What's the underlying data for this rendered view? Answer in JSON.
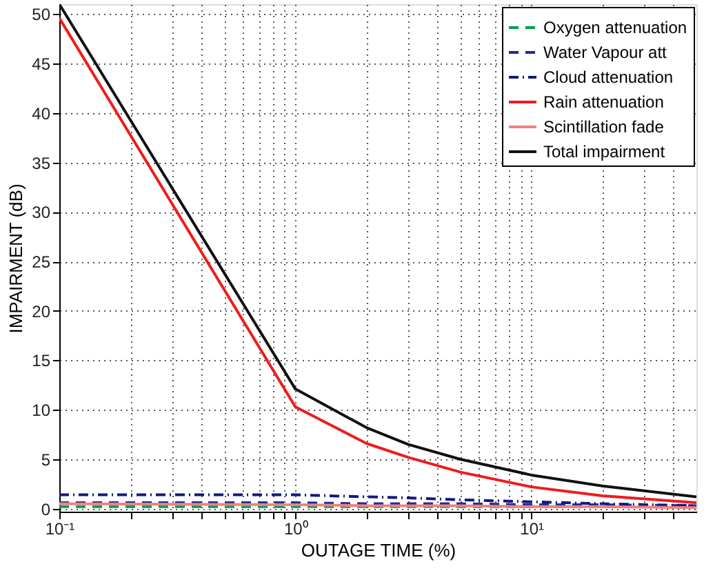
{
  "chart_data": {
    "type": "line",
    "xlabel": "OUTAGE TIME (%)",
    "ylabel": "IMPAIRMENT (dB)",
    "log": "x",
    "grid": true,
    "legend": "top right",
    "marker": "none",
    "xlim": [
      0.1,
      50
    ],
    "ylim": [
      -0.3,
      51
    ],
    "xticks": [
      {
        "value": 0.1,
        "label": "10⁻¹"
      },
      {
        "value": 0.2,
        "label": null
      },
      {
        "value": 0.3,
        "label": null
      },
      {
        "value": 0.4,
        "label": null
      },
      {
        "value": 0.5,
        "label": null
      },
      {
        "value": 0.6,
        "label": null
      },
      {
        "value": 0.7,
        "label": null
      },
      {
        "value": 0.8,
        "label": null
      },
      {
        "value": 0.9,
        "label": null
      },
      {
        "value": 1,
        "label": "10⁰"
      },
      {
        "value": 2,
        "label": null
      },
      {
        "value": 3,
        "label": null
      },
      {
        "value": 4,
        "label": null
      },
      {
        "value": 5,
        "label": null
      },
      {
        "value": 6,
        "label": null
      },
      {
        "value": 7,
        "label": null
      },
      {
        "value": 8,
        "label": null
      },
      {
        "value": 9,
        "label": null
      },
      {
        "value": 10,
        "label": "10¹"
      },
      {
        "value": 20,
        "label": null
      },
      {
        "value": 30,
        "label": null
      },
      {
        "value": 40,
        "label": null
      }
    ],
    "yticks": [
      0,
      5,
      10,
      15,
      20,
      25,
      30,
      35,
      40,
      45,
      50
    ],
    "x": [
      0.1,
      1,
      2,
      3,
      5,
      10,
      20,
      50
    ],
    "series": [
      {
        "name": "Oxygen attenuation",
        "color": "#00a050",
        "line_style": "dashed",
        "values": [
          0.2,
          0.2,
          0.2,
          0.2,
          0.2,
          0.2,
          0.2,
          0.2
        ]
      },
      {
        "name": "Water Vapour att",
        "color": "#1f2a9c",
        "line_style": "dashed",
        "values": [
          0.6,
          0.6,
          0.5,
          0.5,
          0.5,
          0.4,
          0.4,
          0.3
        ]
      },
      {
        "name": "Cloud attenuation",
        "color": "#101a80",
        "line_style": "dashdot",
        "values": [
          1.4,
          1.4,
          1.2,
          1.1,
          0.9,
          0.7,
          0.5,
          0.3
        ]
      },
      {
        "name": "Rain attenuation",
        "color": "#ee1c1c",
        "line_style": "solid",
        "values": [
          49.6,
          10.3,
          6.6,
          5.2,
          3.7,
          2.2,
          1.3,
          0.6
        ]
      },
      {
        "name": "Scintillation fade",
        "color": "#f08080",
        "line_style": "solid",
        "values": [
          0.5,
          0.4,
          0.3,
          0.3,
          0.3,
          0.2,
          0.2,
          0.1
        ]
      },
      {
        "name": "Total impairment",
        "color": "#111111",
        "line_style": "solid",
        "values": [
          51,
          12.1,
          8.2,
          6.5,
          5,
          3.4,
          2.3,
          1.2
        ]
      }
    ]
  }
}
